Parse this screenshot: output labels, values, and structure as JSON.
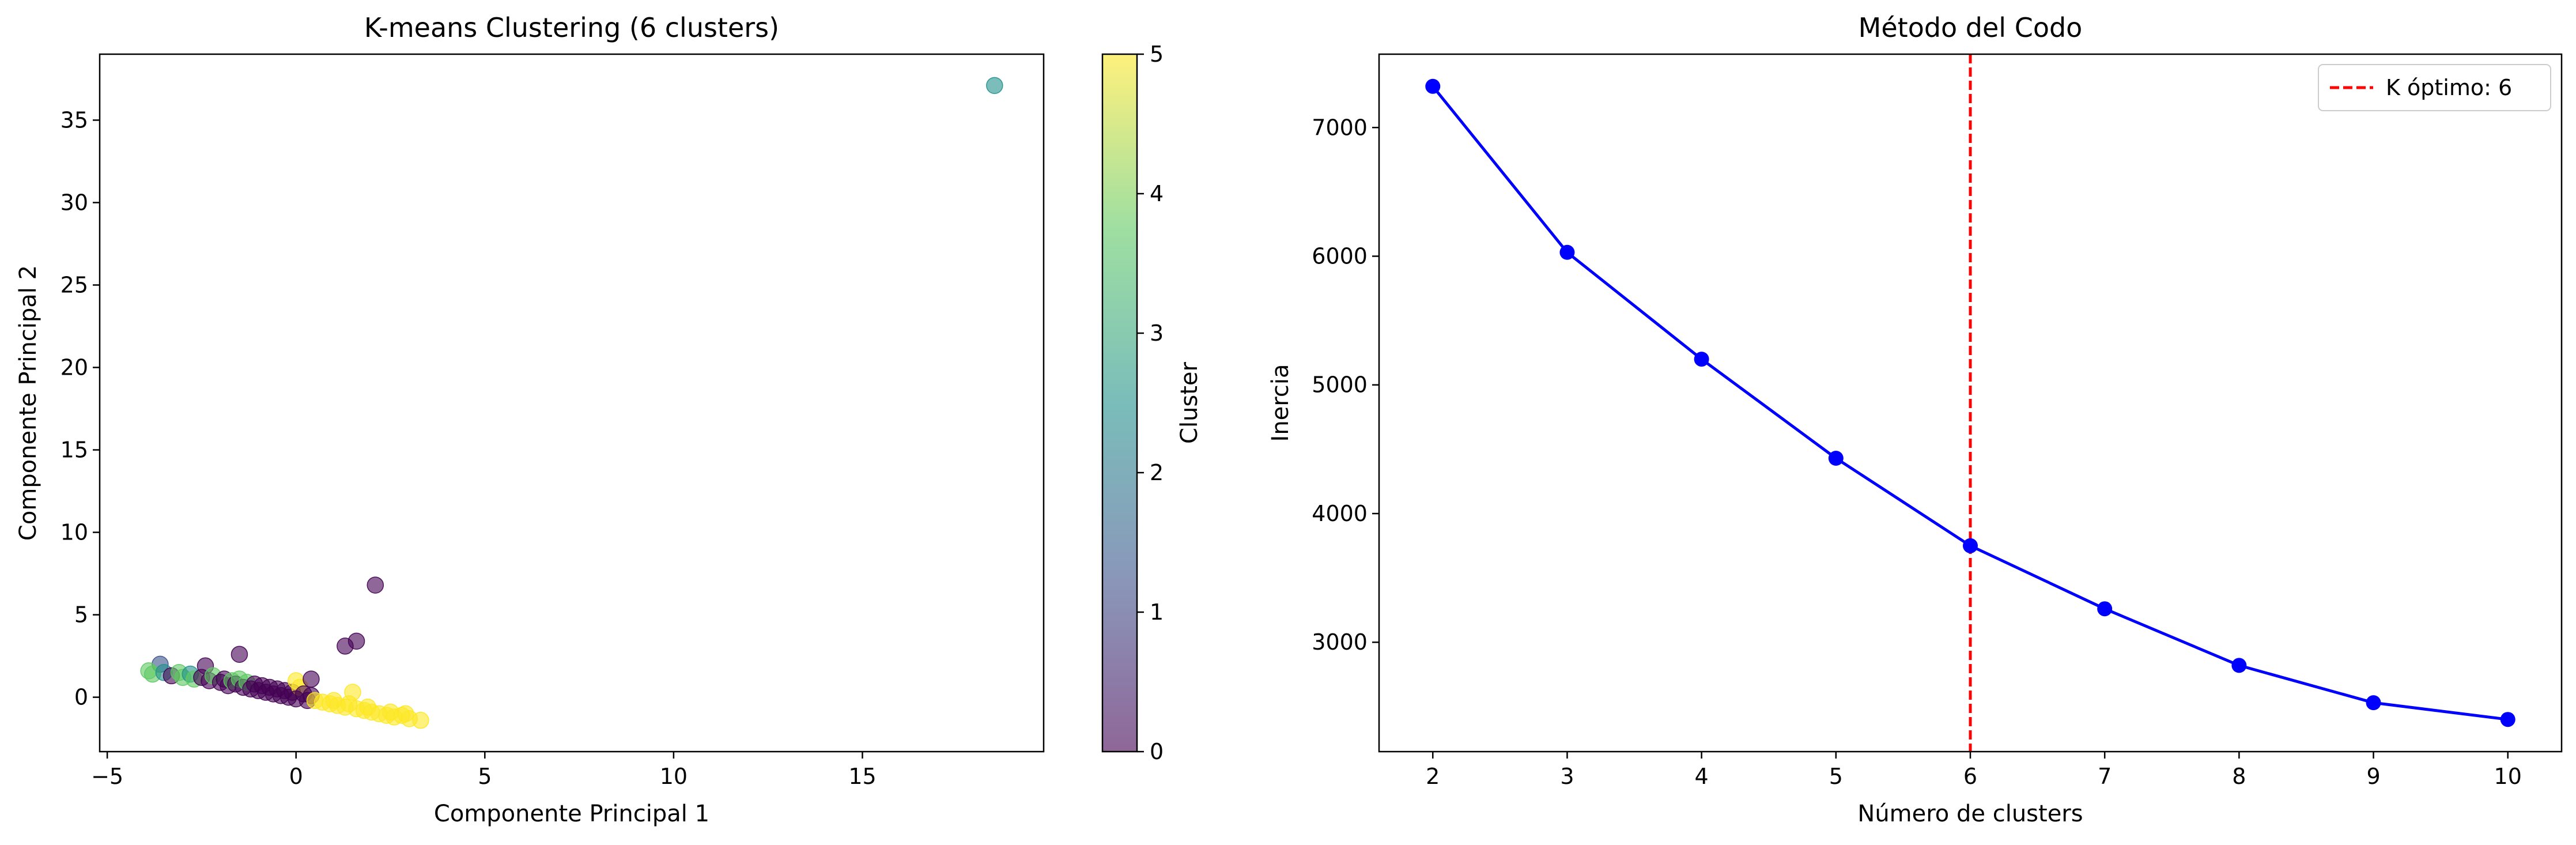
{
  "chart_data": [
    {
      "type": "scatter",
      "title": "K-means Clustering (6 clusters)",
      "xlabel": "Componente Principal 1",
      "ylabel": "Componente Principal 2",
      "xlim": [
        -5.2,
        19.8
      ],
      "ylim": [
        -3.3,
        39.0
      ],
      "xticks": [
        -5,
        0,
        5,
        10,
        15
      ],
      "yticks": [
        0,
        5,
        10,
        15,
        20,
        25,
        30,
        35
      ],
      "grid": false,
      "marker_alpha": 0.6,
      "colorbar": {
        "label": "Cluster",
        "range": [
          0,
          5
        ],
        "ticks": [
          0,
          1,
          2,
          3,
          4,
          5
        ],
        "colormap_stops": [
          "#440154",
          "#3b528b",
          "#21918c",
          "#5ec962",
          "#fde725"
        ]
      },
      "cluster_colors": [
        "#440154",
        "#3b528b",
        "#21918c",
        "#5ec962",
        "#fde725",
        "#fde725"
      ],
      "points": [
        {
          "x": 18.5,
          "y": 37.1,
          "c": 2
        },
        {
          "x": 2.1,
          "y": 6.8,
          "c": 0
        },
        {
          "x": 1.6,
          "y": 3.4,
          "c": 0
        },
        {
          "x": 1.3,
          "y": 3.1,
          "c": 0
        },
        {
          "x": -1.5,
          "y": 2.6,
          "c": 0
        },
        {
          "x": -2.4,
          "y": 1.9,
          "c": 0
        },
        {
          "x": -3.6,
          "y": 2.0,
          "c": 1
        },
        {
          "x": -3.9,
          "y": 1.6,
          "c": 3
        },
        {
          "x": -3.8,
          "y": 1.4,
          "c": 3
        },
        {
          "x": -3.5,
          "y": 1.5,
          "c": 2
        },
        {
          "x": -3.3,
          "y": 1.3,
          "c": 0
        },
        {
          "x": -3.1,
          "y": 1.5,
          "c": 3
        },
        {
          "x": -3.0,
          "y": 1.2,
          "c": 3
        },
        {
          "x": -2.8,
          "y": 1.4,
          "c": 2
        },
        {
          "x": -2.7,
          "y": 1.1,
          "c": 3
        },
        {
          "x": -2.5,
          "y": 1.2,
          "c": 0
        },
        {
          "x": -2.3,
          "y": 1.0,
          "c": 0
        },
        {
          "x": -2.2,
          "y": 1.3,
          "c": 3
        },
        {
          "x": -2.0,
          "y": 0.9,
          "c": 0
        },
        {
          "x": -1.9,
          "y": 1.1,
          "c": 0
        },
        {
          "x": -1.8,
          "y": 0.7,
          "c": 0
        },
        {
          "x": -1.7,
          "y": 1.0,
          "c": 3
        },
        {
          "x": -1.6,
          "y": 0.8,
          "c": 0
        },
        {
          "x": -1.5,
          "y": 1.1,
          "c": 3
        },
        {
          "x": -1.4,
          "y": 0.6,
          "c": 0
        },
        {
          "x": -1.3,
          "y": 0.9,
          "c": 3
        },
        {
          "x": -1.2,
          "y": 0.5,
          "c": 0
        },
        {
          "x": -1.1,
          "y": 0.8,
          "c": 0
        },
        {
          "x": -1.0,
          "y": 0.4,
          "c": 0
        },
        {
          "x": -0.9,
          "y": 0.7,
          "c": 0
        },
        {
          "x": -0.8,
          "y": 0.3,
          "c": 0
        },
        {
          "x": -0.7,
          "y": 0.6,
          "c": 0
        },
        {
          "x": -0.6,
          "y": 0.2,
          "c": 0
        },
        {
          "x": -0.5,
          "y": 0.5,
          "c": 0
        },
        {
          "x": -0.4,
          "y": 0.1,
          "c": 0
        },
        {
          "x": -0.3,
          "y": 0.4,
          "c": 0
        },
        {
          "x": -0.2,
          "y": 0.0,
          "c": 0
        },
        {
          "x": -0.1,
          "y": 0.3,
          "c": 0
        },
        {
          "x": 0.0,
          "y": 1.0,
          "c": 5
        },
        {
          "x": 0.1,
          "y": 0.6,
          "c": 5
        },
        {
          "x": 0.0,
          "y": -0.1,
          "c": 0
        },
        {
          "x": 0.2,
          "y": 0.2,
          "c": 0
        },
        {
          "x": 0.3,
          "y": -0.2,
          "c": 0
        },
        {
          "x": 0.4,
          "y": 1.1,
          "c": 0
        },
        {
          "x": 0.4,
          "y": 0.1,
          "c": 0
        },
        {
          "x": 0.5,
          "y": -0.2,
          "c": 4
        },
        {
          "x": 0.7,
          "y": -0.3,
          "c": 4
        },
        {
          "x": 0.9,
          "y": -0.4,
          "c": 4
        },
        {
          "x": 1.1,
          "y": -0.5,
          "c": 4
        },
        {
          "x": 1.3,
          "y": -0.6,
          "c": 4
        },
        {
          "x": 1.5,
          "y": 0.3,
          "c": 4
        },
        {
          "x": 1.6,
          "y": -0.7,
          "c": 4
        },
        {
          "x": 1.8,
          "y": -0.8,
          "c": 4
        },
        {
          "x": 2.0,
          "y": -0.9,
          "c": 4
        },
        {
          "x": 2.2,
          "y": -1.0,
          "c": 4
        },
        {
          "x": 2.4,
          "y": -1.1,
          "c": 4
        },
        {
          "x": 2.6,
          "y": -1.2,
          "c": 4
        },
        {
          "x": 2.8,
          "y": -1.1,
          "c": 4
        },
        {
          "x": 3.0,
          "y": -1.3,
          "c": 4
        },
        {
          "x": 3.3,
          "y": -1.4,
          "c": 4
        },
        {
          "x": 1.0,
          "y": -0.2,
          "c": 4
        },
        {
          "x": 1.4,
          "y": -0.4,
          "c": 4
        },
        {
          "x": 1.9,
          "y": -0.6,
          "c": 4
        },
        {
          "x": 2.5,
          "y": -0.9,
          "c": 4
        },
        {
          "x": 2.9,
          "y": -1.0,
          "c": 4
        }
      ]
    },
    {
      "type": "line",
      "title": "Método del Codo",
      "xlabel": "Número de clusters",
      "ylabel": "Inercia",
      "x": [
        2,
        3,
        4,
        5,
        6,
        7,
        8,
        9,
        10
      ],
      "y": [
        7320,
        6030,
        5200,
        4430,
        3750,
        3260,
        2820,
        2530,
        2400
      ],
      "xlim": [
        1.6,
        10.4
      ],
      "ylim": [
        2150,
        7570
      ],
      "xticks": [
        2,
        3,
        4,
        5,
        6,
        7,
        8,
        9,
        10
      ],
      "yticks": [
        3000,
        4000,
        5000,
        6000,
        7000
      ],
      "line_color": "#0000ff",
      "marker": "circle",
      "grid": false,
      "vline": {
        "x": 6,
        "color": "#ff0000",
        "style": "dashed",
        "label": "K óptimo: 6"
      },
      "legend": {
        "position": "top-right",
        "entries": [
          "K óptimo: 6"
        ]
      }
    }
  ]
}
